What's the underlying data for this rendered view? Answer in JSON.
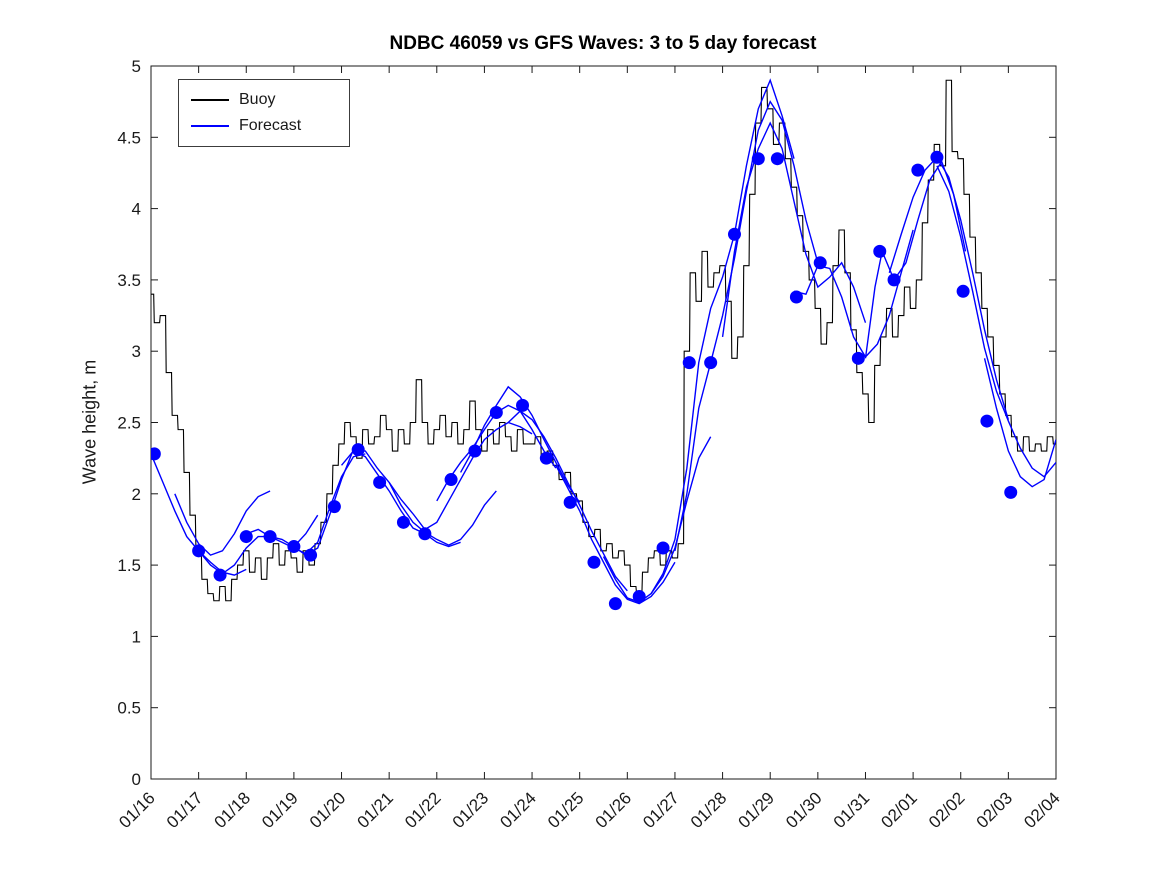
{
  "figure": {
    "title": "NDBC 46059 vs GFS Waves: 3 to 5 day forecast",
    "ylabel": "Wave height, m"
  },
  "legend": {
    "items": [
      {
        "label": "Buoy",
        "color": "#000000"
      },
      {
        "label": "Forecast",
        "color": "#0000ff"
      }
    ]
  },
  "chart_data": {
    "type": "line",
    "title": "NDBC 46059 vs GFS Waves: 3 to 5 day forecast",
    "xlabel": "",
    "ylabel": "Wave height, m",
    "grid": false,
    "legend_position": "top-left",
    "x_unit": "days since 01/16 00:00",
    "xlim": [
      0,
      19
    ],
    "ylim": [
      0,
      5
    ],
    "xticks": [
      0,
      1,
      2,
      3,
      4,
      5,
      6,
      7,
      8,
      9,
      10,
      11,
      12,
      13,
      14,
      15,
      16,
      17,
      18,
      19
    ],
    "xtick_labels": [
      "01/16",
      "01/17",
      "01/18",
      "01/19",
      "01/20",
      "01/21",
      "01/22",
      "01/23",
      "01/24",
      "01/25",
      "01/26",
      "01/27",
      "01/28",
      "01/29",
      "01/30",
      "01/31",
      "02/01",
      "02/02",
      "02/03",
      "02/04"
    ],
    "yticks": [
      0,
      0.5,
      1,
      1.5,
      2,
      2.5,
      3,
      3.5,
      4,
      4.5,
      5
    ],
    "ytick_labels": [
      "0",
      "0.5",
      "1",
      "1.5",
      "2",
      "2.5",
      "3",
      "3.5",
      "4",
      "4.5",
      "5"
    ],
    "series": [
      {
        "name": "Buoy",
        "type": "line",
        "color": "#000000",
        "x_start": 0,
        "x_step": 0.125,
        "values": [
          3.4,
          3.2,
          3.25,
          2.85,
          2.55,
          2.45,
          2.15,
          1.85,
          1.6,
          1.4,
          1.3,
          1.25,
          1.35,
          1.25,
          1.4,
          1.5,
          1.6,
          1.45,
          1.55,
          1.4,
          1.55,
          1.65,
          1.5,
          1.6,
          1.55,
          1.45,
          1.6,
          1.5,
          1.65,
          1.8,
          2.0,
          2.2,
          2.35,
          2.5,
          2.4,
          2.25,
          2.45,
          2.35,
          2.4,
          2.55,
          2.45,
          2.3,
          2.45,
          2.35,
          2.5,
          2.8,
          2.5,
          2.35,
          2.45,
          2.55,
          2.4,
          2.5,
          2.35,
          2.45,
          2.65,
          2.45,
          2.3,
          2.45,
          2.35,
          2.5,
          2.4,
          2.3,
          2.45,
          2.35,
          2.35,
          2.4,
          2.25,
          2.3,
          2.2,
          2.1,
          2.15,
          2.0,
          1.95,
          1.8,
          1.7,
          1.75,
          1.6,
          1.65,
          1.55,
          1.6,
          1.5,
          1.35,
          1.3,
          1.45,
          1.55,
          1.6,
          1.5,
          1.6,
          1.55,
          1.65,
          3.0,
          3.55,
          3.35,
          3.7,
          3.45,
          3.55,
          3.6,
          3.35,
          2.95,
          3.1,
          3.6,
          4.1,
          4.6,
          4.85,
          4.7,
          4.45,
          4.6,
          4.35,
          4.15,
          3.95,
          3.7,
          3.5,
          3.3,
          3.05,
          3.2,
          3.6,
          3.85,
          3.55,
          3.15,
          2.85,
          2.7,
          2.5,
          2.9,
          3.1,
          3.3,
          3.1,
          3.25,
          3.45,
          3.3,
          3.5,
          3.9,
          4.2,
          4.45,
          4.3,
          4.9,
          4.4,
          4.35,
          4.1,
          3.8,
          3.55,
          3.3,
          3.1,
          2.9,
          2.7,
          2.55,
          2.4,
          2.3,
          2.4,
          2.3,
          2.35,
          2.3,
          2.4,
          2.35
        ]
      },
      {
        "name": "Forecast",
        "type": "multi-line",
        "color": "#0000ff",
        "segments": [
          {
            "x": [
              0,
              0.25,
              0.5,
              0.75,
              1.0,
              1.25,
              1.5,
              1.75,
              2.0
            ],
            "y": [
              2.28,
              2.08,
              1.88,
              1.7,
              1.6,
              1.52,
              1.45,
              1.43,
              1.47
            ]
          },
          {
            "x": [
              0.5,
              0.75,
              1.0,
              1.25,
              1.5,
              1.75,
              2.0,
              2.25,
              2.5
            ],
            "y": [
              2.0,
              1.8,
              1.65,
              1.57,
              1.6,
              1.72,
              1.88,
              1.98,
              2.02
            ]
          },
          {
            "x": [
              1.0,
              1.25,
              1.5,
              1.75,
              2.0,
              2.25,
              2.5,
              2.75,
              3.0,
              3.25,
              3.5
            ],
            "y": [
              1.6,
              1.5,
              1.44,
              1.5,
              1.62,
              1.7,
              1.7,
              1.68,
              1.63,
              1.72,
              1.85
            ]
          },
          {
            "x": [
              2.0,
              2.25,
              2.5,
              2.75,
              3.0,
              3.25,
              3.5,
              3.75,
              4.0,
              4.25,
              4.5
            ],
            "y": [
              1.72,
              1.75,
              1.7,
              1.66,
              1.62,
              1.58,
              1.66,
              1.9,
              2.12,
              2.26,
              2.28
            ]
          },
          {
            "x": [
              3.0,
              3.25,
              3.5,
              3.75,
              4.0,
              4.25,
              4.5,
              4.75,
              5.0,
              5.25,
              5.5
            ],
            "y": [
              1.63,
              1.57,
              1.62,
              1.85,
              2.1,
              2.31,
              2.3,
              2.18,
              2.08,
              1.96,
              1.86
            ]
          },
          {
            "x": [
              4.0,
              4.25,
              4.5,
              4.75,
              5.0,
              5.25,
              5.5,
              5.75,
              6.0,
              6.25,
              6.5
            ],
            "y": [
              2.2,
              2.3,
              2.26,
              2.14,
              2.02,
              1.88,
              1.76,
              1.72,
              1.66,
              1.63,
              1.66
            ]
          },
          {
            "x": [
              5.0,
              5.25,
              5.5,
              5.75,
              6.0,
              6.25,
              6.5,
              6.75,
              7.0,
              7.25
            ],
            "y": [
              2.08,
              1.92,
              1.8,
              1.73,
              1.68,
              1.64,
              1.68,
              1.78,
              1.92,
              2.02
            ]
          },
          {
            "x": [
              5.5,
              5.75,
              6.0,
              6.25,
              6.5,
              6.75,
              7.0,
              7.25,
              7.5,
              7.75,
              8.0
            ],
            "y": [
              1.86,
              1.75,
              1.8,
              1.95,
              2.1,
              2.25,
              2.38,
              2.45,
              2.5,
              2.47,
              2.42
            ]
          },
          {
            "x": [
              6.0,
              6.25,
              6.5,
              6.75,
              7.0,
              7.25,
              7.5,
              7.75,
              8.0,
              8.25,
              8.5
            ],
            "y": [
              1.95,
              2.1,
              2.22,
              2.32,
              2.45,
              2.57,
              2.62,
              2.58,
              2.45,
              2.3,
              2.18
            ]
          },
          {
            "x": [
              6.5,
              6.75,
              7.0,
              7.25,
              7.5,
              7.75,
              8.0,
              8.25,
              8.5,
              8.75,
              9.0
            ],
            "y": [
              2.15,
              2.3,
              2.48,
              2.62,
              2.75,
              2.68,
              2.55,
              2.38,
              2.22,
              2.06,
              1.94
            ]
          },
          {
            "x": [
              7.5,
              7.75,
              8.0,
              8.25,
              8.5,
              8.75,
              9.0,
              9.25,
              9.5,
              9.75,
              10.0
            ],
            "y": [
              2.5,
              2.58,
              2.52,
              2.4,
              2.25,
              2.08,
              1.92,
              1.74,
              1.58,
              1.42,
              1.32
            ]
          },
          {
            "x": [
              8.5,
              8.75,
              9.0,
              9.25,
              9.5,
              9.75,
              10.0,
              10.25,
              10.5,
              10.75,
              11.0
            ],
            "y": [
              2.2,
              2.04,
              1.88,
              1.68,
              1.52,
              1.36,
              1.26,
              1.23,
              1.28,
              1.38,
              1.52
            ]
          },
          {
            "x": [
              9.5,
              9.75,
              10.0,
              10.25,
              10.5,
              10.75,
              11.0,
              11.25,
              11.5,
              11.75
            ],
            "y": [
              1.56,
              1.4,
              1.27,
              1.24,
              1.3,
              1.42,
              1.62,
              1.95,
              2.25,
              2.4
            ]
          },
          {
            "x": [
              10.5,
              10.75,
              11.0,
              11.25,
              11.5,
              11.75,
              12.0,
              12.25,
              12.5,
              12.75,
              13.0,
              13.25,
              13.5
            ],
            "y": [
              1.3,
              1.44,
              1.68,
              2.18,
              2.92,
              3.3,
              3.52,
              3.82,
              4.3,
              4.7,
              4.9,
              4.65,
              4.35
            ]
          },
          {
            "x": [
              11.0,
              11.25,
              11.5,
              11.75,
              12.0,
              12.25,
              12.5,
              12.75,
              13.0,
              13.25,
              13.5,
              13.75,
              14.0
            ],
            "y": [
              1.6,
              2.0,
              2.6,
              2.92,
              3.25,
              3.65,
              4.12,
              4.55,
              4.75,
              4.62,
              4.3,
              3.92,
              3.62
            ]
          },
          {
            "x": [
              12.0,
              12.25,
              12.5,
              12.75,
              13.0,
              13.25,
              13.5,
              13.75,
              14.0,
              14.25,
              14.5,
              14.75,
              15.0
            ],
            "y": [
              3.1,
              3.7,
              4.15,
              4.42,
              4.6,
              4.42,
              4.05,
              3.68,
              3.45,
              3.52,
              3.62,
              3.45,
              3.2
            ]
          },
          {
            "x": [
              13.5,
              13.75,
              14.0,
              14.25,
              14.5,
              14.75,
              15.0,
              15.25,
              15.5,
              15.75,
              16.0
            ],
            "y": [
              3.42,
              3.4,
              3.6,
              3.58,
              3.38,
              3.1,
              2.96,
              3.05,
              3.25,
              3.55,
              3.85
            ]
          },
          {
            "x": [
              15.0,
              15.2,
              15.35,
              15.6,
              15.85,
              16.1,
              16.35,
              16.6,
              16.85,
              17.1
            ],
            "y": [
              2.95,
              3.45,
              3.7,
              3.5,
              3.62,
              3.92,
              4.2,
              4.33,
              4.1,
              3.7
            ]
          },
          {
            "x": [
              15.5,
              15.75,
              16.0,
              16.25,
              16.5,
              16.75,
              17.0,
              17.25,
              17.5,
              17.75,
              18.0
            ],
            "y": [
              3.55,
              3.82,
              4.08,
              4.27,
              4.36,
              4.22,
              3.92,
              3.55,
              3.15,
              2.8,
              2.52
            ]
          },
          {
            "x": [
              16.5,
              16.75,
              17.0,
              17.25,
              17.5,
              17.75,
              18.0,
              18.25,
              18.5,
              18.75,
              19.0
            ],
            "y": [
              4.3,
              4.12,
              3.8,
              3.42,
              3.02,
              2.72,
              2.51,
              2.32,
              2.18,
              2.12,
              2.22
            ]
          },
          {
            "x": [
              17.5,
              17.75,
              18.0,
              18.25,
              18.5,
              18.75,
              19.0
            ],
            "y": [
              2.95,
              2.6,
              2.3,
              2.12,
              2.05,
              2.1,
              2.38
            ]
          }
        ]
      },
      {
        "name": "Forecast markers",
        "type": "scatter",
        "color": "#0000ff",
        "marker_radius": 6.5,
        "x": [
          0.07,
          1.0,
          1.45,
          2.0,
          2.5,
          3.0,
          3.35,
          3.85,
          4.35,
          4.8,
          5.3,
          5.75,
          6.3,
          6.8,
          7.25,
          7.8,
          8.3,
          8.8,
          9.3,
          9.75,
          10.25,
          10.75,
          11.3,
          11.75,
          12.25,
          12.75,
          13.15,
          13.55,
          14.05,
          14.85,
          15.3,
          15.6,
          16.1,
          16.5,
          17.05,
          17.55,
          18.05
        ],
        "y": [
          2.28,
          1.6,
          1.43,
          1.7,
          1.7,
          1.63,
          1.57,
          1.91,
          2.31,
          2.08,
          1.8,
          1.72,
          2.1,
          2.3,
          2.57,
          2.62,
          2.25,
          1.94,
          1.52,
          1.23,
          1.28,
          1.62,
          2.92,
          2.92,
          3.82,
          4.35,
          4.35,
          3.38,
          3.62,
          2.95,
          3.7,
          3.5,
          4.27,
          4.36,
          3.42,
          2.51,
          2.01
        ]
      }
    ]
  }
}
